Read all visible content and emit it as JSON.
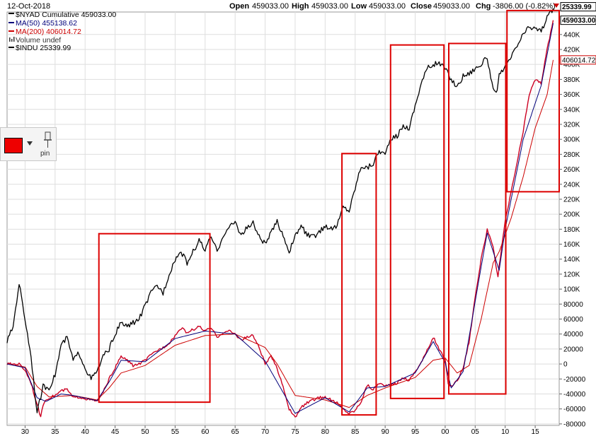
{
  "header": {
    "date": "12-Oct-2018",
    "open_label": "Open",
    "open_value": "459033.00",
    "high_label": "High",
    "high_value": "459033.00",
    "low_label": "Low",
    "low_value": "459033.00",
    "close_label": "Close",
    "close_value": "459033.00",
    "chg_label": "Chg",
    "chg_value": "-3806.00 (-0.82%)"
  },
  "legend": [
    {
      "text": "$NYAD Cumulative 459033.00",
      "color": "#000000"
    },
    {
      "text": "MA(50) 455138.62",
      "color": "#00007a"
    },
    {
      "text": "MA(200) 406014.72",
      "color": "#cc0000"
    },
    {
      "text": "Volume undef",
      "color": "#333333"
    },
    {
      "text": "$INDU 25339.99",
      "color": "#000000"
    }
  ],
  "widget": {
    "swatch_color": "#ee0000",
    "pin_label": "pin"
  },
  "colors": {
    "nyad": "#cc0022",
    "ma50": "#00007a",
    "ma200": "#cc0000",
    "indu": "#000000",
    "box": "#dd0000",
    "grid": "#dedede"
  },
  "chart_data": {
    "type": "line",
    "x_ticks": [
      "30",
      "35",
      "40",
      "45",
      "50",
      "55",
      "60",
      "65",
      "70",
      "75",
      "80",
      "85",
      "90",
      "95",
      "00",
      "05",
      "10",
      "15"
    ],
    "xlim": [
      1927,
      2019
    ],
    "y_ticks": [
      "-80000",
      "-60000",
      "-40000",
      "-20000",
      "0",
      "20000",
      "40000",
      "60000",
      "80000",
      "100K",
      "120K",
      "140K",
      "160K",
      "180K",
      "200K",
      "220K",
      "240K",
      "260K",
      "280K",
      "300K",
      "320K",
      "340K",
      "360K",
      "380K",
      "400K",
      "420K",
      "440K"
    ],
    "ylim": [
      -82000,
      470000
    ],
    "last_value_labels": {
      "indu": "25339.99",
      "nyad": "459033.00",
      "ma200": "406014.72"
    },
    "series": [
      {
        "name": "$NYAD Cumulative",
        "key": "nyad",
        "points": [
          [
            1927,
            0
          ],
          [
            1929,
            0
          ],
          [
            1930,
            -8000
          ],
          [
            1931,
            -25000
          ],
          [
            1932,
            -55000
          ],
          [
            1932.6,
            -70000
          ],
          [
            1933.2,
            -50000
          ],
          [
            1934,
            -45000
          ],
          [
            1935,
            -42000
          ],
          [
            1936,
            -36000
          ],
          [
            1937,
            -34000
          ],
          [
            1938,
            -45000
          ],
          [
            1939,
            -44000
          ],
          [
            1940,
            -46000
          ],
          [
            1941,
            -48000
          ],
          [
            1942,
            -50000
          ],
          [
            1943,
            -38000
          ],
          [
            1944,
            -20000
          ],
          [
            1945,
            -5000
          ],
          [
            1946,
            10000
          ],
          [
            1947,
            5000
          ],
          [
            1948,
            -2000
          ],
          [
            1949,
            0
          ],
          [
            1950,
            5000
          ],
          [
            1951,
            12000
          ],
          [
            1952,
            18000
          ],
          [
            1953,
            22000
          ],
          [
            1954,
            28000
          ],
          [
            1955,
            38000
          ],
          [
            1956,
            48000
          ],
          [
            1957,
            42000
          ],
          [
            1958,
            46000
          ],
          [
            1959,
            50000
          ],
          [
            1960,
            44000
          ],
          [
            1961,
            48000
          ],
          [
            1962,
            36000
          ],
          [
            1963,
            42000
          ],
          [
            1964,
            44000
          ],
          [
            1965,
            40000
          ],
          [
            1966,
            32000
          ],
          [
            1967,
            36000
          ],
          [
            1968,
            38000
          ],
          [
            1969,
            22000
          ],
          [
            1970,
            0
          ],
          [
            1971,
            10000
          ],
          [
            1972,
            -6000
          ],
          [
            1973,
            -30000
          ],
          [
            1974,
            -60000
          ],
          [
            1975,
            -72000
          ],
          [
            1976,
            -58000
          ],
          [
            1977,
            -52000
          ],
          [
            1978,
            -48000
          ],
          [
            1979,
            -45000
          ],
          [
            1980,
            -44000
          ],
          [
            1981,
            -48000
          ],
          [
            1982,
            -52000
          ],
          [
            1983,
            -60000
          ],
          [
            1984,
            -66000
          ],
          [
            1985,
            -62000
          ],
          [
            1986,
            -50000
          ],
          [
            1987,
            -28000
          ],
          [
            1988,
            -34000
          ],
          [
            1989,
            -25000
          ],
          [
            1990,
            -30000
          ],
          [
            1991,
            -28000
          ],
          [
            1992,
            -25000
          ],
          [
            1993,
            -18000
          ],
          [
            1994,
            -22000
          ],
          [
            1995,
            -10000
          ],
          [
            1996,
            2000
          ],
          [
            1997,
            18000
          ],
          [
            1998,
            36000
          ],
          [
            1999,
            20000
          ],
          [
            2000,
            5000
          ],
          [
            2000.5,
            -25000
          ],
          [
            2001,
            -30000
          ],
          [
            2002,
            -22000
          ],
          [
            2003,
            -5000
          ],
          [
            2004,
            30000
          ],
          [
            2005,
            90000
          ],
          [
            2006,
            140000
          ],
          [
            2007,
            180000
          ],
          [
            2008,
            155000
          ],
          [
            2008.8,
            115000
          ],
          [
            2009,
            130000
          ],
          [
            2010,
            190000
          ],
          [
            2011,
            230000
          ],
          [
            2012,
            270000
          ],
          [
            2013,
            310000
          ],
          [
            2014,
            360000
          ],
          [
            2015,
            380000
          ],
          [
            2016,
            375000
          ],
          [
            2017,
            420000
          ],
          [
            2018,
            459033
          ]
        ]
      },
      {
        "name": "MA(50)",
        "key": "ma50",
        "points": [
          [
            1927,
            0
          ],
          [
            1930,
            -5000
          ],
          [
            1932,
            -45000
          ],
          [
            1933.5,
            -50000
          ],
          [
            1936,
            -40000
          ],
          [
            1938,
            -42000
          ],
          [
            1942,
            -49000
          ],
          [
            1944,
            -24000
          ],
          [
            1946,
            5000
          ],
          [
            1950,
            3000
          ],
          [
            1955,
            34000
          ],
          [
            1960,
            44000
          ],
          [
            1965,
            40000
          ],
          [
            1970,
            4000
          ],
          [
            1975,
            -66000
          ],
          [
            1980,
            -45000
          ],
          [
            1984,
            -64000
          ],
          [
            1987,
            -32000
          ],
          [
            1990,
            -30000
          ],
          [
            1995,
            -12000
          ],
          [
            1998,
            30000
          ],
          [
            2000,
            2000
          ],
          [
            2001,
            -32000
          ],
          [
            2003,
            -10000
          ],
          [
            2006,
            130000
          ],
          [
            2007,
            175000
          ],
          [
            2009,
            125000
          ],
          [
            2010,
            180000
          ],
          [
            2013,
            300000
          ],
          [
            2016,
            372000
          ],
          [
            2018,
            455138
          ]
        ]
      },
      {
        "name": "MA(200)",
        "key": "ma200",
        "points": [
          [
            1927,
            0
          ],
          [
            1930,
            -4000
          ],
          [
            1932,
            -30000
          ],
          [
            1934,
            -44000
          ],
          [
            1938,
            -42000
          ],
          [
            1942,
            -48000
          ],
          [
            1944,
            -32000
          ],
          [
            1946,
            -12000
          ],
          [
            1950,
            -2000
          ],
          [
            1955,
            25000
          ],
          [
            1960,
            38000
          ],
          [
            1965,
            40000
          ],
          [
            1970,
            22000
          ],
          [
            1972,
            0
          ],
          [
            1975,
            -42000
          ],
          [
            1980,
            -48000
          ],
          [
            1984,
            -58000
          ],
          [
            1987,
            -42000
          ],
          [
            1990,
            -32000
          ],
          [
            1995,
            -18000
          ],
          [
            1998,
            5000
          ],
          [
            2000,
            8000
          ],
          [
            2002,
            -12000
          ],
          [
            2004,
            -2000
          ],
          [
            2006,
            60000
          ],
          [
            2008,
            135000
          ],
          [
            2009,
            150000
          ],
          [
            2011,
            195000
          ],
          [
            2013,
            250000
          ],
          [
            2015,
            315000
          ],
          [
            2017,
            360000
          ],
          [
            2018,
            406014
          ]
        ]
      },
      {
        "name": "$INDU",
        "key": "indu",
        "points": [
          [
            1927,
            30000
          ],
          [
            1928,
            50000
          ],
          [
            1929,
            108000
          ],
          [
            1930,
            60000
          ],
          [
            1931,
            10000
          ],
          [
            1932,
            -65000
          ],
          [
            1933,
            -30000
          ],
          [
            1934,
            -32000
          ],
          [
            1935,
            -15000
          ],
          [
            1936,
            25000
          ],
          [
            1937,
            35000
          ],
          [
            1938,
            5000
          ],
          [
            1939,
            15000
          ],
          [
            1940,
            -5000
          ],
          [
            1941,
            -20000
          ],
          [
            1942,
            -10000
          ],
          [
            1943,
            10000
          ],
          [
            1944,
            20000
          ],
          [
            1945,
            40000
          ],
          [
            1946,
            55000
          ],
          [
            1947,
            50000
          ],
          [
            1948,
            55000
          ],
          [
            1949,
            60000
          ],
          [
            1950,
            78000
          ],
          [
            1951,
            95000
          ],
          [
            1952,
            105000
          ],
          [
            1953,
            95000
          ],
          [
            1954,
            120000
          ],
          [
            1955,
            140000
          ],
          [
            1956,
            150000
          ],
          [
            1957,
            135000
          ],
          [
            1958,
            150000
          ],
          [
            1959,
            165000
          ],
          [
            1960,
            152000
          ],
          [
            1961,
            170000
          ],
          [
            1962,
            150000
          ],
          [
            1963,
            172000
          ],
          [
            1964,
            182000
          ],
          [
            1965,
            190000
          ],
          [
            1966,
            172000
          ],
          [
            1967,
            182000
          ],
          [
            1968,
            188000
          ],
          [
            1969,
            170000
          ],
          [
            1970,
            160000
          ],
          [
            1971,
            175000
          ],
          [
            1972,
            190000
          ],
          [
            1973,
            172000
          ],
          [
            1974,
            150000
          ],
          [
            1975,
            170000
          ],
          [
            1976,
            185000
          ],
          [
            1977,
            172000
          ],
          [
            1978,
            170000
          ],
          [
            1979,
            175000
          ],
          [
            1980,
            185000
          ],
          [
            1981,
            180000
          ],
          [
            1982,
            185000
          ],
          [
            1983,
            210000
          ],
          [
            1984,
            205000
          ],
          [
            1985,
            235000
          ],
          [
            1986,
            265000
          ],
          [
            1987,
            262000
          ],
          [
            1988,
            268000
          ],
          [
            1989,
            285000
          ],
          [
            1990,
            280000
          ],
          [
            1991,
            300000
          ],
          [
            1992,
            305000
          ],
          [
            1993,
            318000
          ],
          [
            1994,
            315000
          ],
          [
            1995,
            345000
          ],
          [
            1996,
            375000
          ],
          [
            1997,
            395000
          ],
          [
            1998,
            400000
          ],
          [
            1999,
            402000
          ],
          [
            2000,
            395000
          ],
          [
            2001,
            380000
          ],
          [
            2002,
            370000
          ],
          [
            2003,
            385000
          ],
          [
            2004,
            388000
          ],
          [
            2005,
            395000
          ],
          [
            2006,
            400000
          ],
          [
            2007,
            410000
          ],
          [
            2008,
            365000
          ],
          [
            2008.5,
            360000
          ],
          [
            2009,
            385000
          ],
          [
            2010,
            395000
          ],
          [
            2011,
            410000
          ],
          [
            2012,
            425000
          ],
          [
            2013,
            440000
          ],
          [
            2014,
            450000
          ],
          [
            2015,
            448000
          ],
          [
            2016,
            445000
          ],
          [
            2017,
            462000
          ],
          [
            2018,
            475000
          ]
        ]
      }
    ],
    "highlight_boxes": [
      {
        "x1": 1942.3,
        "x2": 1960.8,
        "y1": -51000,
        "y2": 174000
      },
      {
        "x1": 1982.8,
        "x2": 1988.5,
        "y1": -68000,
        "y2": 281000
      },
      {
        "x1": 1990.9,
        "x2": 1999.8,
        "y1": -46000,
        "y2": 426000
      },
      {
        "x1": 2000.6,
        "x2": 2010.1,
        "y1": -40000,
        "y2": 428000
      },
      {
        "x1": 2010.3,
        "x2": 2019.0,
        "y1": 230000,
        "y2": 472000
      }
    ]
  }
}
